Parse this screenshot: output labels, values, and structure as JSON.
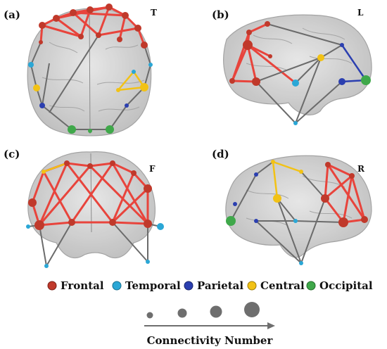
{
  "panels": [
    {
      "label": "(a)",
      "view": "T"
    },
    {
      "label": "(b)",
      "view": "L"
    },
    {
      "label": "(c)",
      "view": "F"
    },
    {
      "label": "(d)",
      "view": "R"
    }
  ],
  "legend": [
    {
      "name": "Frontal",
      "color": "#c0392b"
    },
    {
      "name": "Temporal",
      "color": "#2aa7d6"
    },
    {
      "name": "Parietal",
      "color": "#2b3fb0"
    },
    {
      "name": "Central",
      "color": "#f2c215"
    },
    {
      "name": "Occipital",
      "color": "#3fa84a"
    }
  ],
  "size_scale": {
    "title": "Connectivity Number",
    "marker_color": "#6e6e6e"
  },
  "edge_colors": {
    "frontal": "#e8443c",
    "central": "#f2c215",
    "parietal": "#2b3fb0",
    "other": "#6b6b6b"
  }
}
